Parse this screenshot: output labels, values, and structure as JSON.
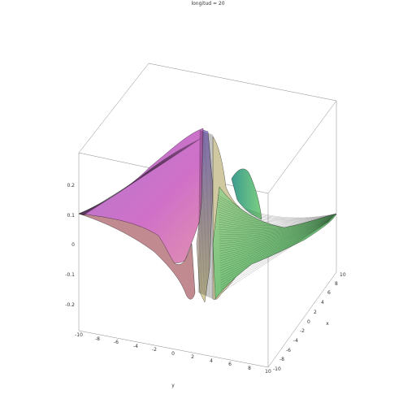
{
  "chart_data": {
    "type": "surface",
    "title": "longitud = 20",
    "xlabel": "x",
    "ylabel": "y",
    "zlabel": "",
    "x_range": [
      -10,
      10
    ],
    "y_range": [
      -10,
      10
    ],
    "z_range": [
      -0.25,
      0.25
    ],
    "x_ticks": [
      "-10",
      "-8",
      "-6",
      "-4",
      "-2",
      "0",
      "2",
      "4",
      "6",
      "8",
      "10"
    ],
    "y_ticks": [
      "-10",
      "-8",
      "-6",
      "-4",
      "-2",
      "0",
      "2",
      "4",
      "6",
      "8",
      "10"
    ],
    "z_ticks": [
      "0.2",
      "0.1",
      "0",
      "-0.1",
      "-0.2"
    ],
    "surface_description": "saddle-like surface with a steep ridge and gap near the center",
    "colors": {
      "magenta": "#c77cd6",
      "violet": "#a78fe0",
      "green": "#5fc07a",
      "teal": "#3e9e8e",
      "mesh": "#000000",
      "box": "#888888"
    }
  }
}
